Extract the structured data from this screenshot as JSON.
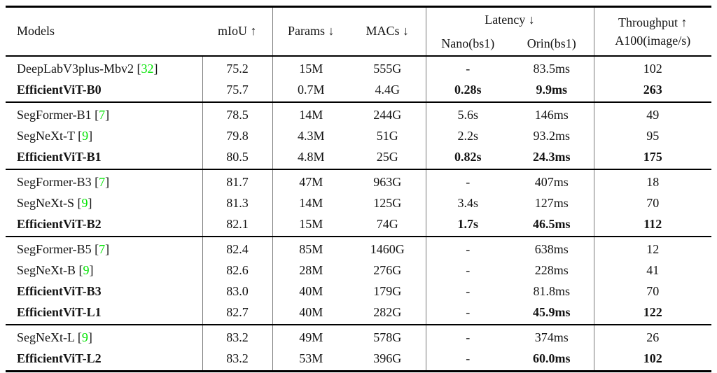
{
  "page": {
    "background": "#ffffff"
  },
  "colors": {
    "citation_green": "#00e400",
    "rule_black": "#000000",
    "rule_gray": "#777777",
    "text": "#141414"
  },
  "header": {
    "models": "Models",
    "miou": "mIoU ↑",
    "params": "Params ↓",
    "macs": "MACs ↓",
    "latency": "Latency ↓",
    "nano": "Nano(bs1)",
    "orin": "Orin(bs1)",
    "throughput_line1": "Throughput ↑",
    "throughput_line2": "A100(image/s)"
  },
  "groups": [
    {
      "rows": [
        {
          "model": "DeepLabV3plus-Mbv2",
          "cite": "32",
          "bold_model": false,
          "cells": {
            "miou": "75.2",
            "params": "15M",
            "macs": "555G",
            "nano": "-",
            "orin": "83.5ms",
            "tp": "102"
          },
          "bold_cells": []
        },
        {
          "model": "EfficientViT-B0",
          "cite": "",
          "bold_model": true,
          "cells": {
            "miou": "75.7",
            "params": "0.7M",
            "macs": "4.4G",
            "nano": "0.28s",
            "orin": "9.9ms",
            "tp": "263"
          },
          "bold_cells": [
            "nano",
            "orin",
            "tp"
          ]
        }
      ]
    },
    {
      "rows": [
        {
          "model": "SegFormer-B1",
          "cite": "7",
          "bold_model": false,
          "cells": {
            "miou": "78.5",
            "params": "14M",
            "macs": "244G",
            "nano": "5.6s",
            "orin": "146ms",
            "tp": "49"
          },
          "bold_cells": []
        },
        {
          "model": "SegNeXt-T",
          "cite": "9",
          "bold_model": false,
          "cells": {
            "miou": "79.8",
            "params": "4.3M",
            "macs": "51G",
            "nano": "2.2s",
            "orin": "93.2ms",
            "tp": "95"
          },
          "bold_cells": []
        },
        {
          "model": "EfficientViT-B1",
          "cite": "",
          "bold_model": true,
          "cells": {
            "miou": "80.5",
            "params": "4.8M",
            "macs": "25G",
            "nano": "0.82s",
            "orin": "24.3ms",
            "tp": "175"
          },
          "bold_cells": [
            "nano",
            "orin",
            "tp"
          ]
        }
      ]
    },
    {
      "rows": [
        {
          "model": "SegFormer-B3",
          "cite": "7",
          "bold_model": false,
          "cells": {
            "miou": "81.7",
            "params": "47M",
            "macs": "963G",
            "nano": "-",
            "orin": "407ms",
            "tp": "18"
          },
          "bold_cells": []
        },
        {
          "model": "SegNeXt-S",
          "cite": "9",
          "bold_model": false,
          "cells": {
            "miou": "81.3",
            "params": "14M",
            "macs": "125G",
            "nano": "3.4s",
            "orin": "127ms",
            "tp": "70"
          },
          "bold_cells": []
        },
        {
          "model": "EfficientViT-B2",
          "cite": "",
          "bold_model": true,
          "cells": {
            "miou": "82.1",
            "params": "15M",
            "macs": "74G",
            "nano": "1.7s",
            "orin": "46.5ms",
            "tp": "112"
          },
          "bold_cells": [
            "nano",
            "orin",
            "tp"
          ]
        }
      ]
    },
    {
      "rows": [
        {
          "model": "SegFormer-B5",
          "cite": "7",
          "bold_model": false,
          "cells": {
            "miou": "82.4",
            "params": "85M",
            "macs": "1460G",
            "nano": "-",
            "orin": "638ms",
            "tp": "12"
          },
          "bold_cells": []
        },
        {
          "model": "SegNeXt-B",
          "cite": "9",
          "bold_model": false,
          "cells": {
            "miou": "82.6",
            "params": "28M",
            "macs": "276G",
            "nano": "-",
            "orin": "228ms",
            "tp": "41"
          },
          "bold_cells": []
        },
        {
          "model": "EfficientViT-B3",
          "cite": "",
          "bold_model": true,
          "cells": {
            "miou": "83.0",
            "params": "40M",
            "macs": "179G",
            "nano": "-",
            "orin": "81.8ms",
            "tp": "70"
          },
          "bold_cells": []
        },
        {
          "model": "EfficientViT-L1",
          "cite": "",
          "bold_model": true,
          "cells": {
            "miou": "82.7",
            "params": "40M",
            "macs": "282G",
            "nano": "-",
            "orin": "45.9ms",
            "tp": "122"
          },
          "bold_cells": [
            "orin",
            "tp"
          ]
        }
      ]
    },
    {
      "rows": [
        {
          "model": "SegNeXt-L",
          "cite": "9",
          "bold_model": false,
          "cells": {
            "miou": "83.2",
            "params": "49M",
            "macs": "578G",
            "nano": "-",
            "orin": "374ms",
            "tp": "26"
          },
          "bold_cells": []
        },
        {
          "model": "EfficientViT-L2",
          "cite": "",
          "bold_model": true,
          "cells": {
            "miou": "83.2",
            "params": "53M",
            "macs": "396G",
            "nano": "-",
            "orin": "60.0ms",
            "tp": "102"
          },
          "bold_cells": [
            "orin",
            "tp"
          ]
        }
      ]
    }
  ]
}
